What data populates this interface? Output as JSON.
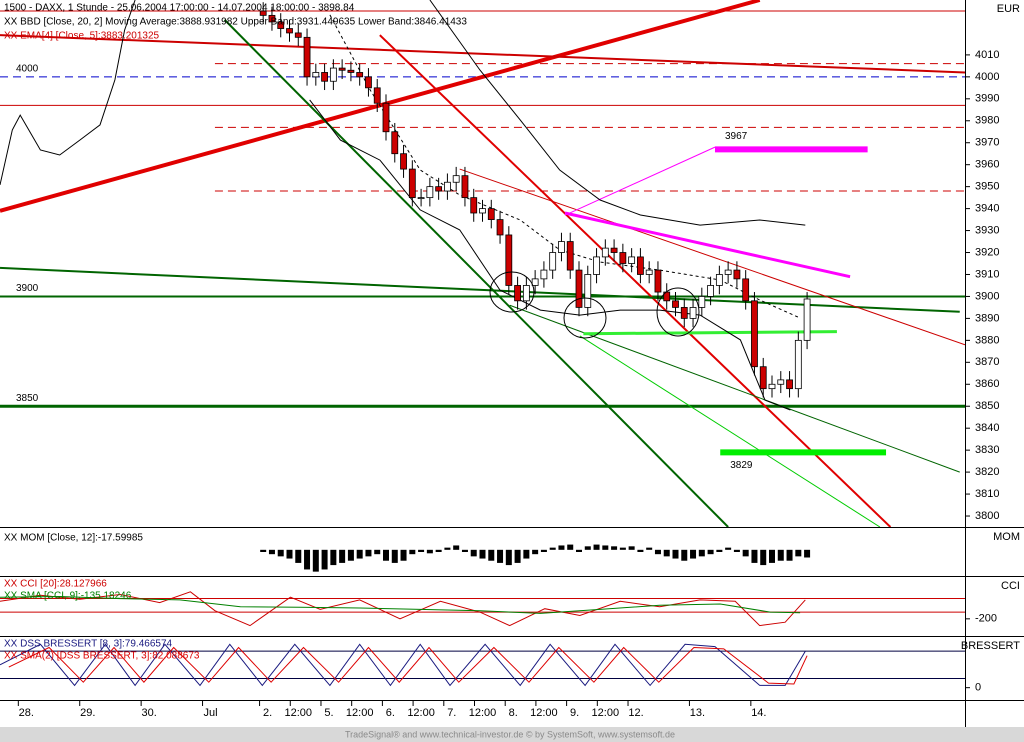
{
  "chart_data": [
    {
      "type": "candlestick",
      "title": "1500 - DAXX, 1 Stunde - 25.06.2004 17:00:00 - 14.07.2004 18:00:00 - 3898.84",
      "annotations": [
        {
          "text": "XX BBD [Close, 20, 2] Moving Average:3888.931982 Upper Band:3931.449635 Lower Band:3846.41433",
          "color": "#000000"
        },
        {
          "text": "XX EMA[4] [Close, 5]:3883.201325",
          "color": "#cc0000"
        }
      ],
      "right_label": "EUR",
      "xlim": [
        -30,
        80
      ],
      "ylim": [
        3795,
        4035
      ],
      "yticks": [
        3800,
        3810,
        3820,
        3830,
        3840,
        3850,
        3860,
        3870,
        3880,
        3890,
        3900,
        3910,
        3920,
        3930,
        3940,
        3950,
        3960,
        3970,
        3980,
        3990,
        4000,
        4010
      ],
      "colors": {
        "up": "#ffffff",
        "down": "#cc0000",
        "outline": "#000000"
      },
      "open": [
        4030,
        4028,
        4025,
        4022,
        4020,
        4018,
        4000,
        4002,
        3998,
        4004,
        4003,
        4002,
        4000,
        3995,
        3988,
        3975,
        3965,
        3958,
        3945,
        3945,
        3950,
        3948,
        3952,
        3955,
        3945,
        3938,
        3940,
        3935,
        3928,
        3905,
        3898,
        3905,
        3908,
        3912,
        3920,
        3925,
        3912,
        3895,
        3910,
        3918,
        3922,
        3920,
        3915,
        3918,
        3910,
        3912,
        3902,
        3898,
        3895,
        3890,
        3895,
        3900,
        3905,
        3910,
        3912,
        3908,
        3898,
        3868,
        3858,
        3860,
        3862,
        3858,
        3880
      ],
      "high": [
        4034,
        4032,
        4029,
        4026,
        4024,
        4022,
        4006,
        4006,
        4008,
        4008,
        4007,
        4006,
        4004,
        3999,
        3992,
        3979,
        3969,
        3962,
        3949,
        3954,
        3954,
        3956,
        3959,
        3959,
        3949,
        3944,
        3944,
        3939,
        3932,
        3909,
        3909,
        3912,
        3916,
        3924,
        3929,
        3929,
        3916,
        3914,
        3922,
        3926,
        3926,
        3924,
        3922,
        3922,
        3916,
        3916,
        3906,
        3902,
        3899,
        3899,
        3904,
        3909,
        3914,
        3916,
        3916,
        3912,
        3902,
        3872,
        3864,
        3866,
        3866,
        3884,
        3902
      ],
      "low": [
        4024,
        4021,
        4018,
        4016,
        4014,
        3996,
        3996,
        3994,
        3994,
        3999,
        3998,
        3996,
        3991,
        3984,
        3971,
        3961,
        3954,
        3941,
        3941,
        3941,
        3944,
        3944,
        3948,
        3941,
        3934,
        3934,
        3931,
        3924,
        3901,
        3894,
        3894,
        3901,
        3904,
        3908,
        3916,
        3908,
        3891,
        3891,
        3906,
        3914,
        3916,
        3911,
        3911,
        3906,
        3906,
        3898,
        3894,
        3891,
        3886,
        3886,
        3891,
        3896,
        3901,
        3906,
        3904,
        3894,
        3864,
        3854,
        3854,
        3856,
        3854,
        3854,
        3876
      ],
      "close": [
        4028,
        4025,
        4022,
        4020,
        4018,
        4000,
        4002,
        3998,
        4004,
        4003,
        4002,
        4000,
        3995,
        3988,
        3975,
        3965,
        3958,
        3945,
        3945,
        3950,
        3948,
        3952,
        3955,
        3945,
        3938,
        3940,
        3935,
        3928,
        3905,
        3898,
        3905,
        3908,
        3912,
        3920,
        3925,
        3912,
        3895,
        3910,
        3918,
        3922,
        3920,
        3915,
        3918,
        3910,
        3912,
        3902,
        3898,
        3895,
        3890,
        3895,
        3900,
        3905,
        3910,
        3912,
        3908,
        3898,
        3868,
        3858,
        3860,
        3862,
        3858,
        3880,
        3898.84
      ],
      "overlays": [
        {
          "color": "#000000",
          "width": 1,
          "dash": false,
          "x": [
            19.0,
            24.7,
            29.3,
            33.8,
            38.4,
            43.0,
            49.8,
            56.6,
            61.8
          ],
          "values": [
            4035,
            4003.1,
            3980.4,
            3957.6,
            3943.9,
            3937.1,
            3932.5,
            3934.8,
            3932.5
          ]
        },
        {
          "color": "#000000",
          "width": 1,
          "dash": false,
          "x": [
            5.3,
            8.8,
            13.3,
            17.9,
            22.4,
            27.0,
            31.6,
            36.1,
            40.7,
            45.2,
            49.8,
            54.4,
            57.2,
            60.1
          ],
          "values": [
            3989.5,
            3971.2,
            3962.1,
            3939.4,
            3930.3,
            3902.9,
            3893.8,
            3891.5,
            3893.8,
            3893.8,
            3891.5,
            3880.2,
            3852.8,
            3848.3
          ]
        },
        {
          "color": "#000000",
          "width": 1,
          "dash": false,
          "x": [
            -30,
            -28.6,
            -27.7,
            -25.4,
            -23.2,
            -20.9,
            -18.6,
            -16.9,
            -15.8,
            -14.6
          ],
          "values": [
            3950.8,
            3975.8,
            3982.6,
            3966.7,
            3964.4,
            3971.2,
            3978.1,
            3998.6,
            4021.3,
            4035
          ]
        },
        {
          "color": "#000000",
          "width": 1,
          "dash": true,
          "x": [
            7.6,
            12.2,
            17.9,
            22.4,
            29.3,
            33.8,
            38.4,
            45.2,
            52.1,
            56.6,
            61.2
          ],
          "values": [
            4028.2,
            3994.0,
            3957.6,
            3946.2,
            3934.8,
            3921.2,
            3915.7,
            3912.0,
            3907.5,
            3898.4,
            3890.2
          ]
        }
      ],
      "levels": [
        {
          "value": 4030,
          "color": "#cc0000",
          "width": 1,
          "dash": false,
          "show_label": false
        },
        {
          "value": 4006,
          "color": "#cc0000",
          "width": 1,
          "dash": true,
          "show_label": false,
          "x": [
            -5.5,
            80
          ]
        },
        {
          "value": 4000,
          "color": "#0000cc",
          "width": 1,
          "dash": true,
          "show_label": true
        },
        {
          "value": 3987,
          "color": "#cc0000",
          "width": 1,
          "dash": false,
          "show_label": false
        },
        {
          "value": 3977,
          "color": "#cc0000",
          "width": 1,
          "dash": true,
          "show_label": false,
          "x": [
            -5.5,
            80
          ]
        },
        {
          "value": 3948,
          "color": "#cc0000",
          "width": 1,
          "dash": true,
          "show_label": false,
          "x": [
            -5.5,
            80
          ]
        },
        {
          "value": 3900,
          "color": "#006400",
          "width": 2,
          "dash": false,
          "show_label": true
        },
        {
          "value": 3850,
          "color": "#006400",
          "width": 3,
          "dash": false,
          "show_label": true
        }
      ],
      "targets": [
        {
          "value": 3967,
          "x": [
            51.5,
            68.9
          ],
          "color": "#ff00ff",
          "width": 6,
          "label_position": "above"
        },
        {
          "value": 3829,
          "x": [
            52.1,
            71
          ],
          "color": "#00ee00",
          "width": 6,
          "label_position": "below"
        }
      ],
      "trendlines": [
        {
          "x": [
            -30,
            56.6
          ],
          "values": [
            3939,
            4035
          ],
          "color": "#e00000",
          "width": 4
        },
        {
          "x": [
            -30,
            80
          ],
          "values": [
            4019,
            4002
          ],
          "color": "#cc0000",
          "width": 2
        },
        {
          "x": [
            -4.4,
            53
          ],
          "values": [
            4026,
            3795
          ],
          "color": "#006400",
          "width": 2
        },
        {
          "x": [
            13.3,
            71.5
          ],
          "values": [
            4019,
            3795
          ],
          "color": "#e00000",
          "width": 2
        },
        {
          "x": [
            -30,
            79.4
          ],
          "values": [
            3913,
            3893
          ],
          "color": "#006400",
          "width": 2
        },
        {
          "x": [
            22.4,
            80
          ],
          "values": [
            3958,
            3878
          ],
          "color": "#cc0000",
          "width": 1
        },
        {
          "x": [
            28.1,
            79.4
          ],
          "values": [
            3896,
            3820
          ],
          "color": "#006400",
          "width": 1
        },
        {
          "x": [
            36.1,
            70.3
          ],
          "values": [
            3882,
            3795
          ],
          "color": "#00cc00",
          "width": 1
        },
        {
          "x": [
            34.4,
            51.5
          ],
          "values": [
            3937,
            3968
          ],
          "color": "#ff00ff",
          "width": 1
        },
        {
          "x": [
            34.4,
            66.9
          ],
          "values": [
            3938,
            3909
          ],
          "color": "#ff00ff",
          "width": 3
        },
        {
          "x": [
            36.5,
            65.4
          ],
          "values": [
            3883,
            3884
          ],
          "color": "#33ee33",
          "width": 3
        }
      ]
    },
    {
      "type": "bar",
      "title": "XX MOM [Close, 12]:-17.59985",
      "right_label": "MOM",
      "xlim": [
        -30,
        80
      ],
      "ylim": [
        -60,
        50
      ],
      "color": "#000000",
      "values": [
        -5,
        -10,
        -15,
        -20,
        -30,
        -45,
        -50,
        -45,
        -35,
        -30,
        -25,
        -20,
        -15,
        -10,
        -25,
        -30,
        -25,
        -10,
        -5,
        -8,
        -5,
        5,
        10,
        -5,
        -15,
        -20,
        -25,
        -30,
        -35,
        -30,
        -20,
        -10,
        -5,
        5,
        10,
        12,
        -5,
        8,
        12,
        10,
        8,
        5,
        8,
        -5,
        5,
        -10,
        -15,
        -20,
        -25,
        -20,
        -15,
        -10,
        -5,
        5,
        -5,
        -15,
        -30,
        -35,
        -30,
        -25,
        -25,
        -15,
        -17.59985
      ]
    },
    {
      "type": "line",
      "right_label": "CCI",
      "xlim": [
        -30,
        80
      ],
      "ylim": [
        -454,
        419
      ],
      "yticks": [
        -200
      ],
      "levels": [
        {
          "value": 100,
          "color": "#cc0000",
          "width": 1,
          "dash": false,
          "show_label": false
        },
        {
          "value": -100,
          "color": "#cc0000",
          "width": 1,
          "dash": false,
          "show_label": false
        }
      ],
      "series": [
        {
          "name": "XX CCI [20]:28.127966",
          "color": "#cc0000",
          "x": [
            -30,
            -25.4,
            -20.9,
            -16.3,
            -11.8,
            -8.3,
            -5.5,
            -1.5,
            3.1,
            6.5,
            11.0,
            15.6,
            20.2,
            24.7,
            28.1,
            32.1,
            36.1,
            40.7,
            45.2,
            49.8,
            53.8,
            56.6,
            59.5,
            61.8
          ],
          "values": [
            60,
            150,
            90,
            160,
            40,
            200,
            -80,
            -300,
            120,
            -60,
            80,
            -200,
            60,
            -100,
            -300,
            -50,
            -150,
            60,
            -20,
            80,
            60,
            -300,
            -250,
            80
          ]
        },
        {
          "name": "XX SMA [CCI, 9]:-135.18246",
          "color": "#008000",
          "x": [
            -30,
            -23.2,
            -16.3,
            -9.5,
            -2.6,
            4.2,
            11.0,
            17.9,
            24.7,
            31.6,
            38.4,
            45.2,
            52.1,
            57.8,
            61.2
          ],
          "values": [
            120,
            130,
            100,
            80,
            -20,
            -30,
            -40,
            -60,
            -80,
            -120,
            -60,
            0,
            20,
            -100,
            -110
          ]
        }
      ]
    },
    {
      "type": "line",
      "right_label": "BRESSERT",
      "xlim": [
        -30,
        80
      ],
      "ylim": [
        -27,
        111
      ],
      "yticks": [
        0
      ],
      "levels": [
        {
          "value": 80,
          "color": "#000040",
          "width": 1,
          "dash": false,
          "show_label": false
        },
        {
          "value": 20,
          "color": "#000040",
          "width": 1,
          "dash": false,
          "show_label": false
        }
      ],
      "series": [
        {
          "name": "XX DSS BRESSERT [8, 3]:79.466574",
          "color": "#1a1a80",
          "x": [
            -30,
            -25.4,
            -21.5,
            -18.0,
            -14.6,
            -11.2,
            -7.2,
            -3.8,
            -0.1,
            3.6,
            7.6,
            11.0,
            14.5,
            17.9,
            21.3,
            25.3,
            29.3,
            32.7,
            36.7,
            40.1,
            44.1,
            48.1,
            51.5,
            56.6,
            59.5,
            61.8
          ],
          "values": [
            50,
            95,
            5,
            95,
            5,
            95,
            5,
            95,
            5,
            95,
            5,
            95,
            5,
            95,
            5,
            95,
            5,
            95,
            5,
            95,
            5,
            95,
            90,
            5,
            5,
            80
          ]
        },
        {
          "name": "XX SMA(2) [DSS BRESSERT, 3]:82.088673",
          "color": "#dd0000",
          "x": [
            -29,
            -24.4,
            -20.5,
            -17.0,
            -13.6,
            -10.2,
            -6.2,
            -2.8,
            0.9,
            4.6,
            8.6,
            12.0,
            15.5,
            18.9,
            22.3,
            26.3,
            30.3,
            33.7,
            37.7,
            41.1,
            45.1,
            49.1,
            52.5,
            57.6,
            60.5,
            62.0
          ],
          "values": [
            45,
            88,
            12,
            88,
            12,
            88,
            12,
            88,
            12,
            88,
            12,
            88,
            12,
            88,
            12,
            88,
            12,
            88,
            12,
            88,
            12,
            88,
            85,
            10,
            8,
            70
          ]
        }
      ],
      "xticks": [
        {
          "value": -27,
          "label": "28."
        },
        {
          "value": -20,
          "label": "29."
        },
        {
          "value": -13,
          "label": "30."
        },
        {
          "value": -6,
          "label": "Jul"
        },
        {
          "value": 0.5,
          "label": "2."
        },
        {
          "value": 4,
          "label": "12:00"
        },
        {
          "value": 7.5,
          "label": "5."
        },
        {
          "value": 11,
          "label": "12:00"
        },
        {
          "value": 14.5,
          "label": "6."
        },
        {
          "value": 18,
          "label": "12:00"
        },
        {
          "value": 21.5,
          "label": "7."
        },
        {
          "value": 25,
          "label": "12:00"
        },
        {
          "value": 28.5,
          "label": "8."
        },
        {
          "value": 32,
          "label": "12:00"
        },
        {
          "value": 35.5,
          "label": "9."
        },
        {
          "value": 39,
          "label": "12:00"
        },
        {
          "value": 42.5,
          "label": "12."
        },
        {
          "value": 49.5,
          "label": "13."
        },
        {
          "value": 56.5,
          "label": "14."
        }
      ]
    }
  ],
  "footer": "TradeSignal® and www.technical-investor.de © by SystemSoft, www.systemsoft.de"
}
